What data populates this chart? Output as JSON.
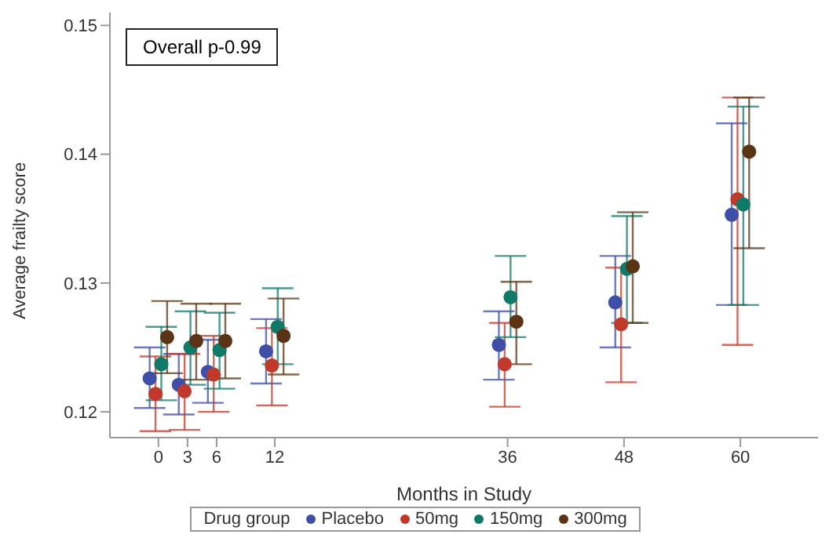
{
  "chart_data": {
    "type": "scatter",
    "xlabel": "Months in Study",
    "ylabel": "Average frailty score",
    "legend_title": "Drug group",
    "annotations": [
      "Overall p-0.99"
    ],
    "xlim": [
      -5,
      68
    ],
    "xticks": [
      0,
      3,
      6,
      12,
      36,
      48,
      60
    ],
    "ylim": [
      0.118,
      0.151
    ],
    "yticks": [
      0.12,
      0.13,
      0.14,
      0.15
    ],
    "grid": false,
    "legend": "bottom",
    "marker": "circle",
    "series": [
      {
        "name": "Placebo",
        "color": "#3f4ea6",
        "x": [
          -0.9,
          2.1,
          5.1,
          11.1,
          35.1,
          47.1,
          59.1
        ],
        "values": [
          0.1226,
          0.1221,
          0.1231,
          0.1247,
          0.1252,
          0.1285,
          0.1353
        ],
        "errors": [
          [
            0.1203,
            0.125
          ],
          [
            0.1198,
            0.1245
          ],
          [
            0.1207,
            0.1256
          ],
          [
            0.1222,
            0.1272
          ],
          [
            0.1225,
            0.1278
          ],
          [
            0.125,
            0.1321
          ],
          [
            0.1283,
            0.1424
          ]
        ]
      },
      {
        "name": "50mg",
        "color": "#c0392b",
        "x": [
          -0.3,
          2.7,
          5.7,
          11.7,
          35.7,
          47.7,
          59.7
        ],
        "values": [
          0.1214,
          0.1216,
          0.1229,
          0.1236,
          0.1237,
          0.1268,
          0.1365
        ],
        "errors": [
          [
            0.1185,
            0.1243
          ],
          [
            0.1186,
            0.1245
          ],
          [
            0.12,
            0.1259
          ],
          [
            0.1205,
            0.1265
          ],
          [
            0.1204,
            0.1269
          ],
          [
            0.1223,
            0.1312
          ],
          [
            0.1252,
            0.1444
          ]
        ]
      },
      {
        "name": "150mg",
        "color": "#0f7a68",
        "x": [
          0.3,
          3.3,
          6.3,
          12.3,
          36.3,
          48.3,
          60.3
        ],
        "values": [
          0.1237,
          0.125,
          0.1248,
          0.1266,
          0.1289,
          0.1311,
          0.1361
        ],
        "errors": [
          [
            0.1209,
            0.1266
          ],
          [
            0.1221,
            0.1278
          ],
          [
            0.1218,
            0.1277
          ],
          [
            0.1237,
            0.1296
          ],
          [
            0.1258,
            0.1321
          ],
          [
            0.1269,
            0.1352
          ],
          [
            0.1283,
            0.1437
          ]
        ]
      },
      {
        "name": "300mg",
        "color": "#5a3414",
        "x": [
          0.9,
          3.9,
          6.9,
          12.9,
          36.9,
          48.9,
          60.9
        ],
        "values": [
          0.1258,
          0.1255,
          0.1255,
          0.1259,
          0.127,
          0.1313,
          0.1402
        ],
        "errors": [
          [
            0.123,
            0.1286
          ],
          [
            0.1225,
            0.1284
          ],
          [
            0.1226,
            0.1284
          ],
          [
            0.1229,
            0.1288
          ],
          [
            0.1237,
            0.1301
          ],
          [
            0.1269,
            0.1355
          ],
          [
            0.1327,
            0.1444
          ]
        ]
      }
    ]
  }
}
